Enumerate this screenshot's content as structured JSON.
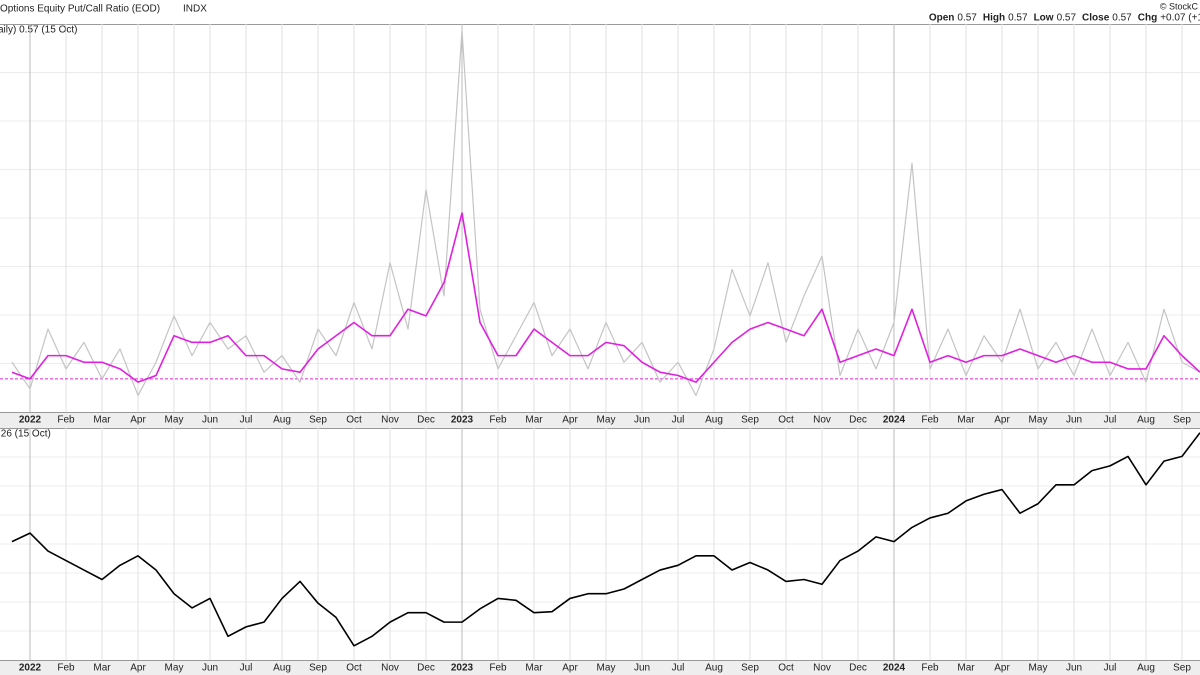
{
  "chart_data": [
    {
      "type": "line",
      "title": "Options Equity Put/Call Ratio (EOD)",
      "exchange": "INDX",
      "source": "© StockC",
      "quote": [
        {
          "name": "Open",
          "value": 0.57
        },
        {
          "name": "High",
          "value": 0.57
        },
        {
          "name": "Low",
          "value": 0.57
        },
        {
          "name": "Close",
          "value": 0.57
        },
        {
          "name": "Chg",
          "value": 0.07,
          "label": "+0.07 (+1"
        }
      ],
      "legend_text": "aily) 0.57 (15 Oct)",
      "categories": [
        null,
        "2022",
        null,
        "Feb",
        null,
        "Mar",
        null,
        "Apr",
        null,
        "May",
        null,
        "Jun",
        null,
        "Jul",
        null,
        "Aug",
        null,
        "Sep",
        null,
        "Oct",
        null,
        "Nov",
        null,
        "Dec",
        null,
        "2023",
        null,
        "Feb",
        null,
        "Mar",
        null,
        "Apr",
        null,
        "May",
        null,
        "Jun",
        null,
        "Jul",
        null,
        "Aug",
        null,
        "Sep",
        null,
        "Oct",
        null,
        "Nov",
        null,
        "Dec",
        null,
        "2024",
        null,
        "Feb",
        null,
        "Mar",
        null,
        "Apr",
        null,
        "May",
        null,
        "Jun",
        null,
        "Jul",
        null,
        "Aug",
        null,
        "Sep",
        null
      ],
      "series": [
        {
          "color": "#c4c4c4",
          "values": [
            0.6,
            0.52,
            0.7,
            0.58,
            0.66,
            0.55,
            0.64,
            0.5,
            0.6,
            0.74,
            0.62,
            0.72,
            0.64,
            0.68,
            0.57,
            0.62,
            0.54,
            0.7,
            0.62,
            0.78,
            0.64,
            0.9,
            0.7,
            1.12,
            0.8,
            1.6,
            0.76,
            0.58,
            0.68,
            0.78,
            0.62,
            0.7,
            0.58,
            0.72,
            0.6,
            0.66,
            0.54,
            0.6,
            0.5,
            0.64,
            0.88,
            0.74,
            0.9,
            0.66,
            0.8,
            0.92,
            0.56,
            0.7,
            0.58,
            0.72,
            1.2,
            0.58,
            0.7,
            0.56,
            0.68,
            0.6,
            0.76,
            0.58,
            0.66,
            0.56,
            0.7,
            0.56,
            0.66,
            0.54,
            0.76,
            0.6,
            0.57
          ]
        },
        {
          "color": "#e020e0",
          "values": [
            0.57,
            0.55,
            0.62,
            0.62,
            0.6,
            0.6,
            0.58,
            0.54,
            0.56,
            0.68,
            0.66,
            0.66,
            0.68,
            0.62,
            0.62,
            0.58,
            0.57,
            0.64,
            0.68,
            0.72,
            0.68,
            0.68,
            0.76,
            0.74,
            0.84,
            1.05,
            0.72,
            0.62,
            0.62,
            0.7,
            0.66,
            0.62,
            0.62,
            0.66,
            0.65,
            0.6,
            0.57,
            0.56,
            0.54,
            0.6,
            0.66,
            0.7,
            0.72,
            0.7,
            0.68,
            0.76,
            0.6,
            0.62,
            0.64,
            0.62,
            0.76,
            0.6,
            0.62,
            0.6,
            0.62,
            0.62,
            0.64,
            0.62,
            0.6,
            0.62,
            0.6,
            0.6,
            0.58,
            0.58,
            0.68,
            0.62,
            0.57
          ]
        }
      ],
      "reference_line": {
        "value": 0.55,
        "color": "#e020e0"
      },
      "ylim": [
        0.45,
        1.62
      ]
    },
    {
      "type": "line",
      "legend_text": ".26 (15 Oct)",
      "categories": [
        null,
        "2022",
        null,
        "Feb",
        null,
        "Mar",
        null,
        "Apr",
        null,
        "May",
        null,
        "Jun",
        null,
        "Jul",
        null,
        "Aug",
        null,
        "Sep",
        null,
        "Oct",
        null,
        "Nov",
        null,
        "Dec",
        null,
        "2023",
        null,
        "Feb",
        null,
        "Mar",
        null,
        "Apr",
        null,
        "May",
        null,
        "Jun",
        null,
        "Jul",
        null,
        "Aug",
        null,
        "Sep",
        null,
        "Oct",
        null,
        "Nov",
        null,
        "Dec",
        null,
        "2024",
        null,
        "Feb",
        null,
        "Mar",
        null,
        "Apr",
        null,
        "May",
        null,
        "Jun",
        null,
        "Jul",
        null,
        "Aug",
        null,
        "Sep",
        null
      ],
      "series": [
        {
          "color": "#000000",
          "values": [
            4700,
            4790,
            4600,
            4500,
            4400,
            4300,
            4450,
            4550,
            4400,
            4150,
            4000,
            4100,
            3700,
            3800,
            3850,
            4100,
            4280,
            4050,
            3900,
            3600,
            3700,
            3850,
            3950,
            3950,
            3850,
            3850,
            3990,
            4100,
            4080,
            3950,
            3960,
            4100,
            4150,
            4150,
            4200,
            4300,
            4400,
            4450,
            4550,
            4550,
            4400,
            4480,
            4400,
            4280,
            4300,
            4250,
            4500,
            4600,
            4750,
            4700,
            4850,
            4950,
            5000,
            5130,
            5200,
            5250,
            5000,
            5100,
            5300,
            5300,
            5450,
            5500,
            5600,
            5300,
            5550,
            5600,
            5850
          ]
        }
      ],
      "ylim": [
        3450,
        5900
      ]
    }
  ]
}
